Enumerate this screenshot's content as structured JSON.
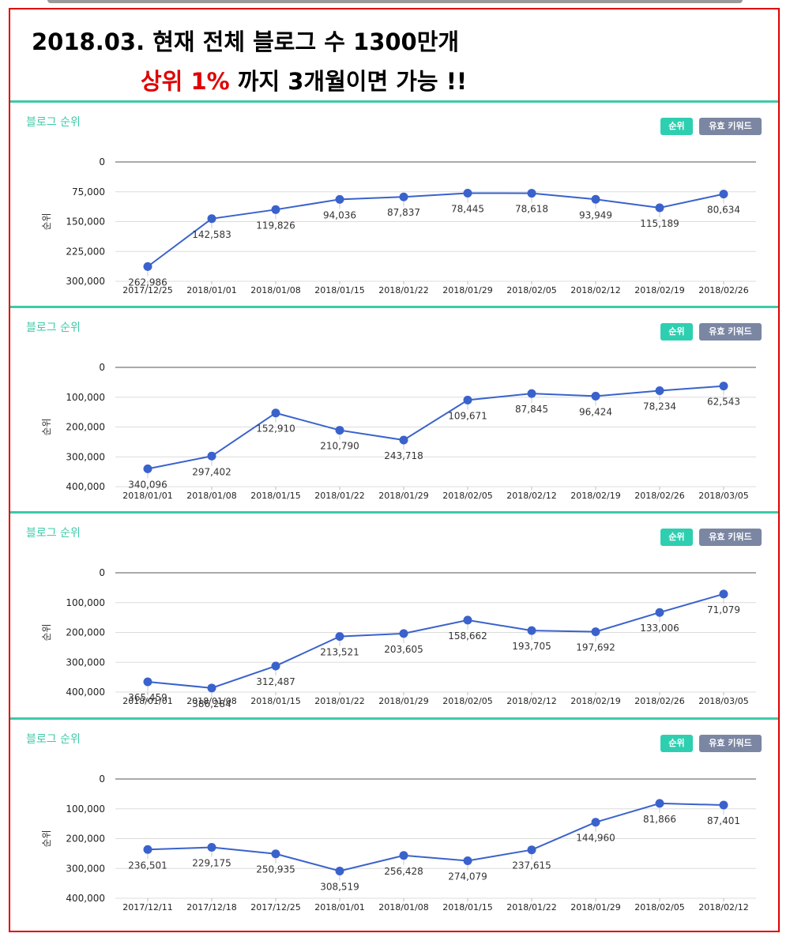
{
  "headline": {
    "line1": "2018.03. 현재 전체 블로그 수 1300만개",
    "line2_red": "상위 1%",
    "line2_rest": " 까지 3개월이면 가능 !!"
  },
  "colors": {
    "accent": "#3ec9a7",
    "line": "#3a62cc",
    "frame": "#e00000",
    "keyword_button": "#7b86a3"
  },
  "panels": [
    {
      "title": "블로그 순위",
      "rank_button": "순위",
      "keyword_button": "유효 키워드",
      "chart_data": {
        "type": "line",
        "ylabel": "순위",
        "y_reversed": true,
        "ylim": [
          0,
          300000
        ],
        "yticks": [
          0,
          75000,
          150000,
          225000,
          300000
        ],
        "ytick_labels": [
          "0",
          "75,000",
          "150,000",
          "225,000",
          "300,000"
        ],
        "categories": [
          "2017/12/25",
          "2018/01/01",
          "2018/01/08",
          "2018/01/15",
          "2018/01/22",
          "2018/01/29",
          "2018/02/05",
          "2018/02/12",
          "2018/02/19",
          "2018/02/26"
        ],
        "values": [
          262986,
          142583,
          119826,
          94036,
          87837,
          78445,
          78618,
          93949,
          115189,
          80634
        ],
        "value_labels": [
          "262,986",
          "142,583",
          "119,826",
          "94,036",
          "87,837",
          "78,445",
          "78,618",
          "93,949",
          "115,189",
          "80,634"
        ]
      }
    },
    {
      "title": "블로그 순위",
      "rank_button": "순위",
      "keyword_button": "유효 키워드",
      "chart_data": {
        "type": "line",
        "ylabel": "순위",
        "y_reversed": true,
        "ylim": [
          0,
          400000
        ],
        "yticks": [
          0,
          100000,
          200000,
          300000,
          400000
        ],
        "ytick_labels": [
          "0",
          "100,000",
          "200,000",
          "300,000",
          "400,000"
        ],
        "categories": [
          "2018/01/01",
          "2018/01/08",
          "2018/01/15",
          "2018/01/22",
          "2018/01/29",
          "2018/02/05",
          "2018/02/12",
          "2018/02/19",
          "2018/02/26",
          "2018/03/05"
        ],
        "values": [
          340096,
          297402,
          152910,
          210790,
          243718,
          109671,
          87845,
          96424,
          78234,
          62543
        ],
        "value_labels": [
          "340,096",
          "297,402",
          "152,910",
          "210,790",
          "243,718",
          "109,671",
          "87,845",
          "96,424",
          "78,234",
          "62,543"
        ]
      }
    },
    {
      "title": "블로그 순위",
      "rank_button": "순위",
      "keyword_button": "유효 키워드",
      "chart_data": {
        "type": "line",
        "ylabel": "순위",
        "y_reversed": true,
        "ylim": [
          0,
          400000
        ],
        "yticks": [
          0,
          100000,
          200000,
          300000,
          400000
        ],
        "ytick_labels": [
          "0",
          "100,000",
          "200,000",
          "300,000",
          "400,000"
        ],
        "categories": [
          "2018/01/01",
          "2018/01/08",
          "2018/01/15",
          "2018/01/22",
          "2018/01/29",
          "2018/02/05",
          "2018/02/12",
          "2018/02/19",
          "2018/02/26",
          "2018/03/05"
        ],
        "values": [
          365459,
          386284,
          312487,
          213521,
          203605,
          158662,
          193705,
          197692,
          133006,
          71079
        ],
        "value_labels": [
          "365,459",
          "386,284",
          "312,487",
          "213,521",
          "203,605",
          "158,662",
          "193,705",
          "197,692",
          "133,006",
          "71,079"
        ]
      }
    },
    {
      "title": "블로그 순위",
      "rank_button": "순위",
      "keyword_button": "유효 키워드",
      "chart_data": {
        "type": "line",
        "ylabel": "순위",
        "y_reversed": true,
        "ylim": [
          0,
          400000
        ],
        "yticks": [
          0,
          100000,
          200000,
          300000,
          400000
        ],
        "ytick_labels": [
          "0",
          "100,000",
          "200,000",
          "300,000",
          "400,000"
        ],
        "categories": [
          "2017/12/11",
          "2017/12/18",
          "2017/12/25",
          "2018/01/01",
          "2018/01/08",
          "2018/01/15",
          "2018/01/22",
          "2018/01/29",
          "2018/02/05",
          "2018/02/12"
        ],
        "values": [
          236501,
          229175,
          250935,
          308519,
          256428,
          274079,
          237615,
          144960,
          81866,
          87401
        ],
        "value_labels": [
          "236,501",
          "229,175",
          "250,935",
          "308,519",
          "256,428",
          "274,079",
          "237,615",
          "144,960",
          "81,866",
          "87,401"
        ]
      }
    }
  ]
}
